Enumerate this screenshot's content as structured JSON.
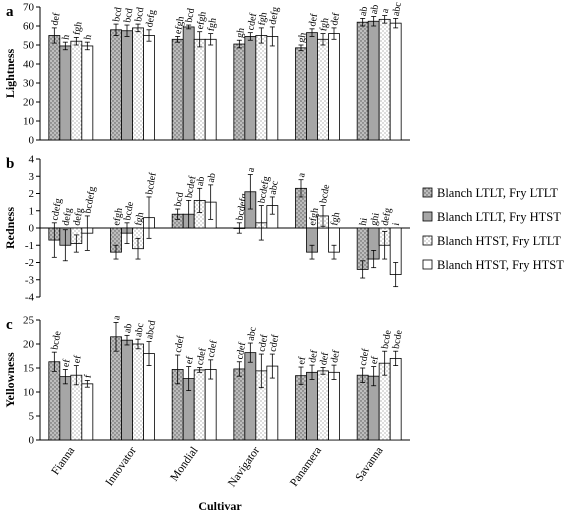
{
  "chart_data": [
    {
      "type": "bar",
      "panel_label": "a",
      "ylabel": "Lightness",
      "ylim": [
        0,
        70
      ],
      "yticks": [
        0,
        10,
        20,
        30,
        40,
        50,
        60,
        70
      ],
      "categories": [
        "Fianna",
        "Innovator",
        "Mondial",
        "Navigator",
        "Panamera",
        "Savanna"
      ],
      "series": [
        {
          "values": [
            55.0,
            58.0,
            53.0,
            50.5,
            48.5,
            62.0
          ],
          "errors": [
            4.0,
            3.0,
            1.5,
            2.0,
            1.5,
            2.0
          ]
        },
        {
          "values": [
            49.5,
            57.5,
            59.5,
            54.5,
            56.5,
            62.5
          ],
          "errors": [
            2.0,
            3.0,
            1.0,
            2.0,
            2.0,
            2.5
          ]
        },
        {
          "values": [
            52.0,
            59.0,
            53.0,
            55.0,
            53.0,
            63.5
          ],
          "errors": [
            2.0,
            2.0,
            4.0,
            4.0,
            3.0,
            2.0
          ]
        },
        {
          "values": [
            49.5,
            55.0,
            53.0,
            54.5,
            56.0,
            61.5
          ],
          "errors": [
            2.0,
            3.0,
            3.0,
            5.0,
            3.0,
            2.5
          ]
        }
      ],
      "labels": [
        [
          "def",
          "bcd",
          "efgh",
          "gh",
          "gh",
          "ab"
        ],
        [
          "h",
          "bcd",
          "bcd",
          "cdef",
          "def",
          "ab"
        ],
        [
          "fgh",
          "bcd",
          "efgh",
          "fgh",
          "fgh",
          "a"
        ],
        [
          "h",
          "defg",
          "fgh",
          "defg",
          "def",
          "abc"
        ]
      ]
    },
    {
      "type": "bar",
      "panel_label": "b",
      "ylabel": "Redness",
      "ylim": [
        -4,
        4
      ],
      "yticks": [
        -4,
        -3,
        -2,
        -1,
        0,
        1,
        2,
        3,
        4
      ],
      "categories": [
        "Fianna",
        "Innovator",
        "Mondial",
        "Navigator",
        "Panamera",
        "Savanna"
      ],
      "series": [
        {
          "values": [
            -0.7,
            -1.4,
            0.8,
            0.0,
            2.3,
            -2.4
          ],
          "errors": [
            1.0,
            0.4,
            0.3,
            0.3,
            0.5,
            0.5
          ]
        },
        {
          "values": [
            -1.0,
            -0.3,
            0.8,
            2.1,
            -1.4,
            -1.8
          ],
          "errors": [
            0.9,
            0.6,
            0.8,
            1.0,
            0.4,
            0.5
          ]
        },
        {
          "values": [
            -0.9,
            -1.2,
            1.6,
            0.3,
            0.7,
            -1.0
          ],
          "errors": [
            0.5,
            0.6,
            0.7,
            1.0,
            0.6,
            0.8
          ]
        },
        {
          "values": [
            -0.3,
            0.6,
            1.5,
            1.3,
            -1.4,
            -2.7
          ],
          "errors": [
            1.0,
            1.2,
            1.0,
            0.5,
            0.4,
            0.7
          ]
        }
      ],
      "labels": [
        [
          "cdefg",
          "efgh",
          "bcd",
          "bcdefg",
          "a",
          "hi"
        ],
        [
          "defg",
          "bcde",
          "bcdef",
          "a",
          "efgh",
          "ghi"
        ],
        [
          "defg",
          "fgh",
          "ab",
          "bcdefg",
          "bcde",
          "defg"
        ],
        [
          "bcdefg",
          "bcdef",
          "ab",
          "abc",
          "fgh",
          "i"
        ]
      ]
    },
    {
      "type": "bar",
      "panel_label": "c",
      "ylabel": "Yellowness",
      "xlabel": "Cultivar",
      "ylim": [
        0,
        25
      ],
      "yticks": [
        0,
        5,
        10,
        15,
        20,
        25
      ],
      "categories": [
        "Fianna",
        "Innovator",
        "Mondial",
        "Navigator",
        "Panamera",
        "Savanna"
      ],
      "series": [
        {
          "values": [
            16.3,
            21.5,
            14.7,
            14.8,
            13.4,
            13.5
          ],
          "errors": [
            2.0,
            3.0,
            3.0,
            1.5,
            1.8,
            1.5
          ]
        },
        {
          "values": [
            13.2,
            20.8,
            12.8,
            18.2,
            14.1,
            13.3
          ],
          "errors": [
            1.5,
            1.0,
            2.5,
            2.0,
            1.5,
            2.0
          ]
        },
        {
          "values": [
            13.5,
            20.0,
            14.6,
            14.4,
            14.4,
            16.0
          ],
          "errors": [
            2.0,
            1.0,
            0.5,
            3.5,
            0.7,
            2.5
          ]
        },
        {
          "values": [
            11.7,
            18.0,
            14.7,
            15.4,
            14.1,
            17.0
          ],
          "errors": [
            0.7,
            2.5,
            2.0,
            2.5,
            1.5,
            1.5
          ]
        }
      ],
      "labels": [
        [
          "bcde",
          "a",
          "cdef",
          "cdef",
          "ef",
          "cdef"
        ],
        [
          "ef",
          "ab",
          "ef",
          "abc",
          "def",
          "ef"
        ],
        [
          "ef",
          "abc",
          "cdef",
          "cdef",
          "def",
          "bcde"
        ],
        [
          "f",
          "abcd",
          "cdef",
          "cdef",
          "def",
          "bcde"
        ]
      ]
    }
  ],
  "legend": [
    {
      "label": "Blanch LTLT, Fry LTLT",
      "fill": "dotted-gray"
    },
    {
      "label": "Blanch LTLT, Fry HTST",
      "fill": "gray"
    },
    {
      "label": "Blanch HTST, Fry LTLT",
      "fill": "dotted-white"
    },
    {
      "label": "Blanch HTST, Fry HTST",
      "fill": "white"
    }
  ],
  "colors": {
    "gray": "#a6a6a6",
    "dotted_gray": "#bdbdbd",
    "white": "#ffffff",
    "axis": "#000000"
  }
}
